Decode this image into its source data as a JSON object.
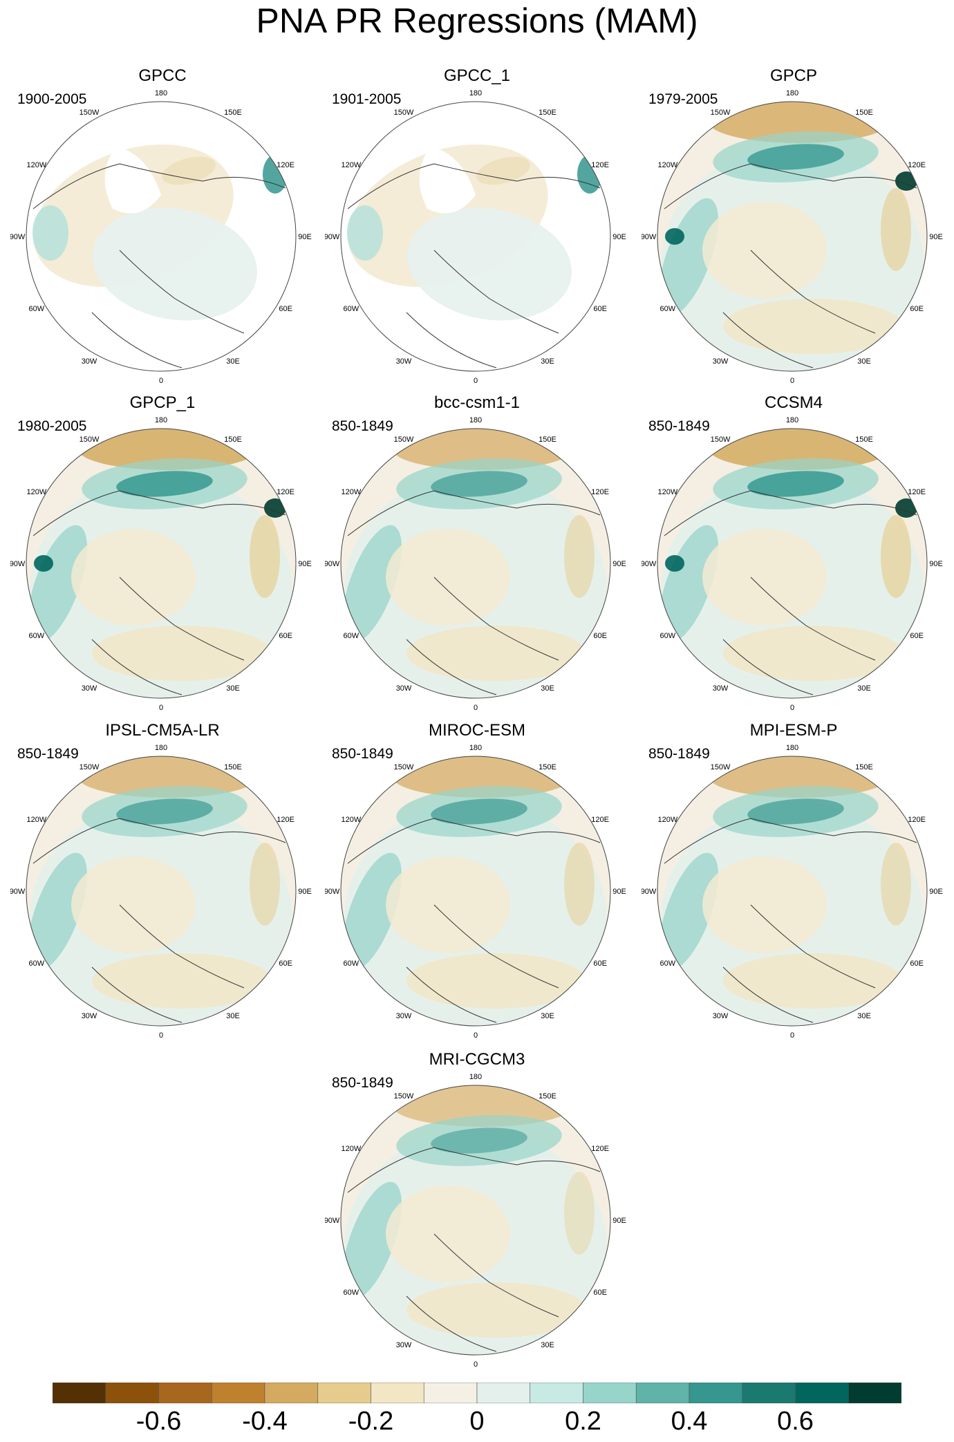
{
  "title": "PNA PR Regressions (MAM)",
  "lon_labels": [
    "180",
    "150E",
    "120E",
    "90E",
    "60E",
    "30E",
    "0",
    "30W",
    "60W",
    "90W",
    "120W",
    "150W"
  ],
  "panels": [
    {
      "title": "GPCC",
      "period": "1900-2005",
      "type": "obs",
      "intensity": 0.3,
      "coverage": "land"
    },
    {
      "title": "GPCC_1",
      "period": "1901-2005",
      "type": "obs",
      "intensity": 0.3,
      "coverage": "land"
    },
    {
      "title": "GPCP",
      "period": "1979-2005",
      "type": "obs",
      "intensity": 0.8,
      "coverage": "global"
    },
    {
      "title": "GPCP_1",
      "period": "1980-2005",
      "type": "obs",
      "intensity": 0.9,
      "coverage": "global"
    },
    {
      "title": "bcc-csm1-1",
      "period": "850-1849",
      "type": "model",
      "intensity": 0.6,
      "coverage": "global"
    },
    {
      "title": "CCSM4",
      "period": "850-1849",
      "type": "model",
      "intensity": 0.9,
      "coverage": "global"
    },
    {
      "title": "IPSL-CM5A-LR",
      "period": "850-1849",
      "type": "model",
      "intensity": 0.6,
      "coverage": "global"
    },
    {
      "title": "MIROC-ESM",
      "period": "850-1849",
      "type": "model",
      "intensity": 0.6,
      "coverage": "global"
    },
    {
      "title": "MPI-ESM-P",
      "period": "850-1849",
      "type": "model",
      "intensity": 0.6,
      "coverage": "global"
    },
    {
      "title": "MRI-CGCM3",
      "period": "850-1849",
      "type": "model",
      "intensity": 0.4,
      "coverage": "global"
    }
  ],
  "colorbar": {
    "colors": [
      "#543005",
      "#8c510a",
      "#a8671f",
      "#bf812d",
      "#d4aa60",
      "#e6cc8c",
      "#f2e6c4",
      "#f5f0e4",
      "#e3f0ec",
      "#c7eae5",
      "#97d4ca",
      "#5fb3a8",
      "#35978f",
      "#1a7a70",
      "#01665e",
      "#003c30"
    ],
    "labels": [
      "-0.6",
      "-0.4",
      "-0.2",
      "0",
      "0.2",
      "0.4",
      "0.6"
    ],
    "label_values": [
      -0.6,
      -0.4,
      -0.2,
      0,
      0.2,
      0.4,
      0.6
    ],
    "min": -0.8,
    "max": 0.8
  }
}
